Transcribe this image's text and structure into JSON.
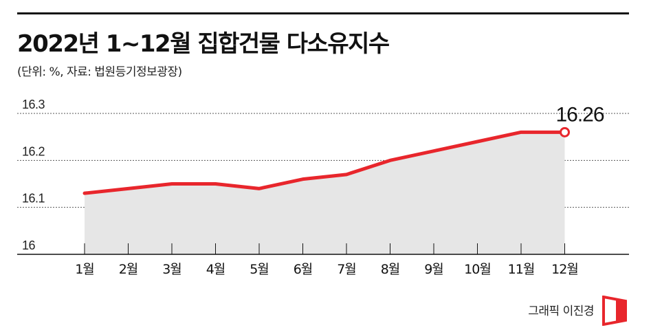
{
  "title": "2022년 1~12월 집합건물 다소유지수",
  "subtitle": "(단위: %, 자료: 법원등기정보광장)",
  "credit": "그래픽 이진경",
  "colors": {
    "line": "#e8262c",
    "area": "#e6e6e6",
    "grid": "#555555",
    "axis": "#111111"
  },
  "chart_data": {
    "type": "area",
    "title": "2022년 1~12월 집합건물 다소유지수",
    "xlabel": "",
    "ylabel": "",
    "categories": [
      "1월",
      "2월",
      "3월",
      "4월",
      "5월",
      "6월",
      "7월",
      "8월",
      "9월",
      "10월",
      "11월",
      "12월"
    ],
    "values": [
      16.13,
      16.14,
      16.15,
      16.15,
      16.14,
      16.16,
      16.17,
      16.2,
      16.22,
      16.24,
      16.26,
      16.26
    ],
    "ylim": [
      16.0,
      16.3
    ],
    "yticks": [
      "16",
      "16.1",
      "16.2",
      "16.3"
    ],
    "annotation": "16.26",
    "grid": true,
    "legend": "none"
  }
}
